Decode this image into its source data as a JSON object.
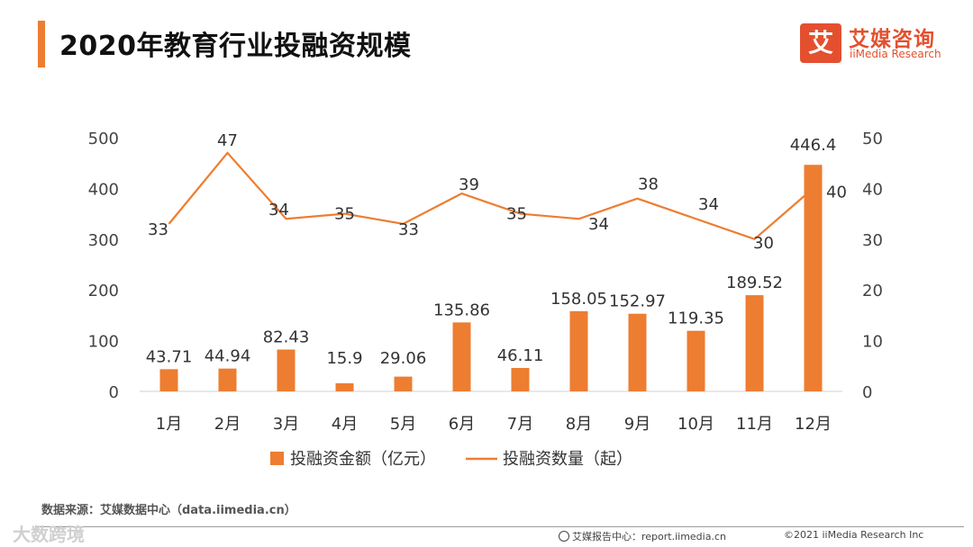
{
  "header": {
    "title": "2020年教育行业投融资规模"
  },
  "logo": {
    "icon_char": "艾",
    "cn": "艾媒咨询",
    "en": "iiMedia Research"
  },
  "chart_data": {
    "type": "bar+line",
    "categories": [
      "1月",
      "2月",
      "3月",
      "4月",
      "5月",
      "6月",
      "7月",
      "8月",
      "9月",
      "10月",
      "11月",
      "12月"
    ],
    "series": [
      {
        "name": "投融资金额（亿元）",
        "type": "bar",
        "axis": "left",
        "color": "#ED7D31",
        "values": [
          43.71,
          44.94,
          82.43,
          15.9,
          29.06,
          135.86,
          46.11,
          158.05,
          152.97,
          119.35,
          189.52,
          446.4
        ]
      },
      {
        "name": "投融资数量（起）",
        "type": "line",
        "axis": "right",
        "color": "#ED7D31",
        "values": [
          33,
          47,
          34,
          35,
          33,
          39,
          35,
          34,
          38,
          34,
          30,
          40
        ]
      }
    ],
    "left_axis": {
      "ticks": [
        0,
        100,
        200,
        300,
        400,
        500
      ],
      "range": [
        0,
        500
      ]
    },
    "right_axis": {
      "ticks": [
        0,
        10,
        20,
        30,
        40,
        50
      ],
      "range": [
        0,
        50
      ]
    },
    "legend_position": "bottom"
  },
  "footer": {
    "source": "数据来源：艾媒数据中心（data.iimedia.cn）",
    "report_center": "艾媒报告中心：report.iimedia.cn",
    "copyright": "©2021  iiMedia Research  Inc",
    "watermark": "大数跨境"
  }
}
